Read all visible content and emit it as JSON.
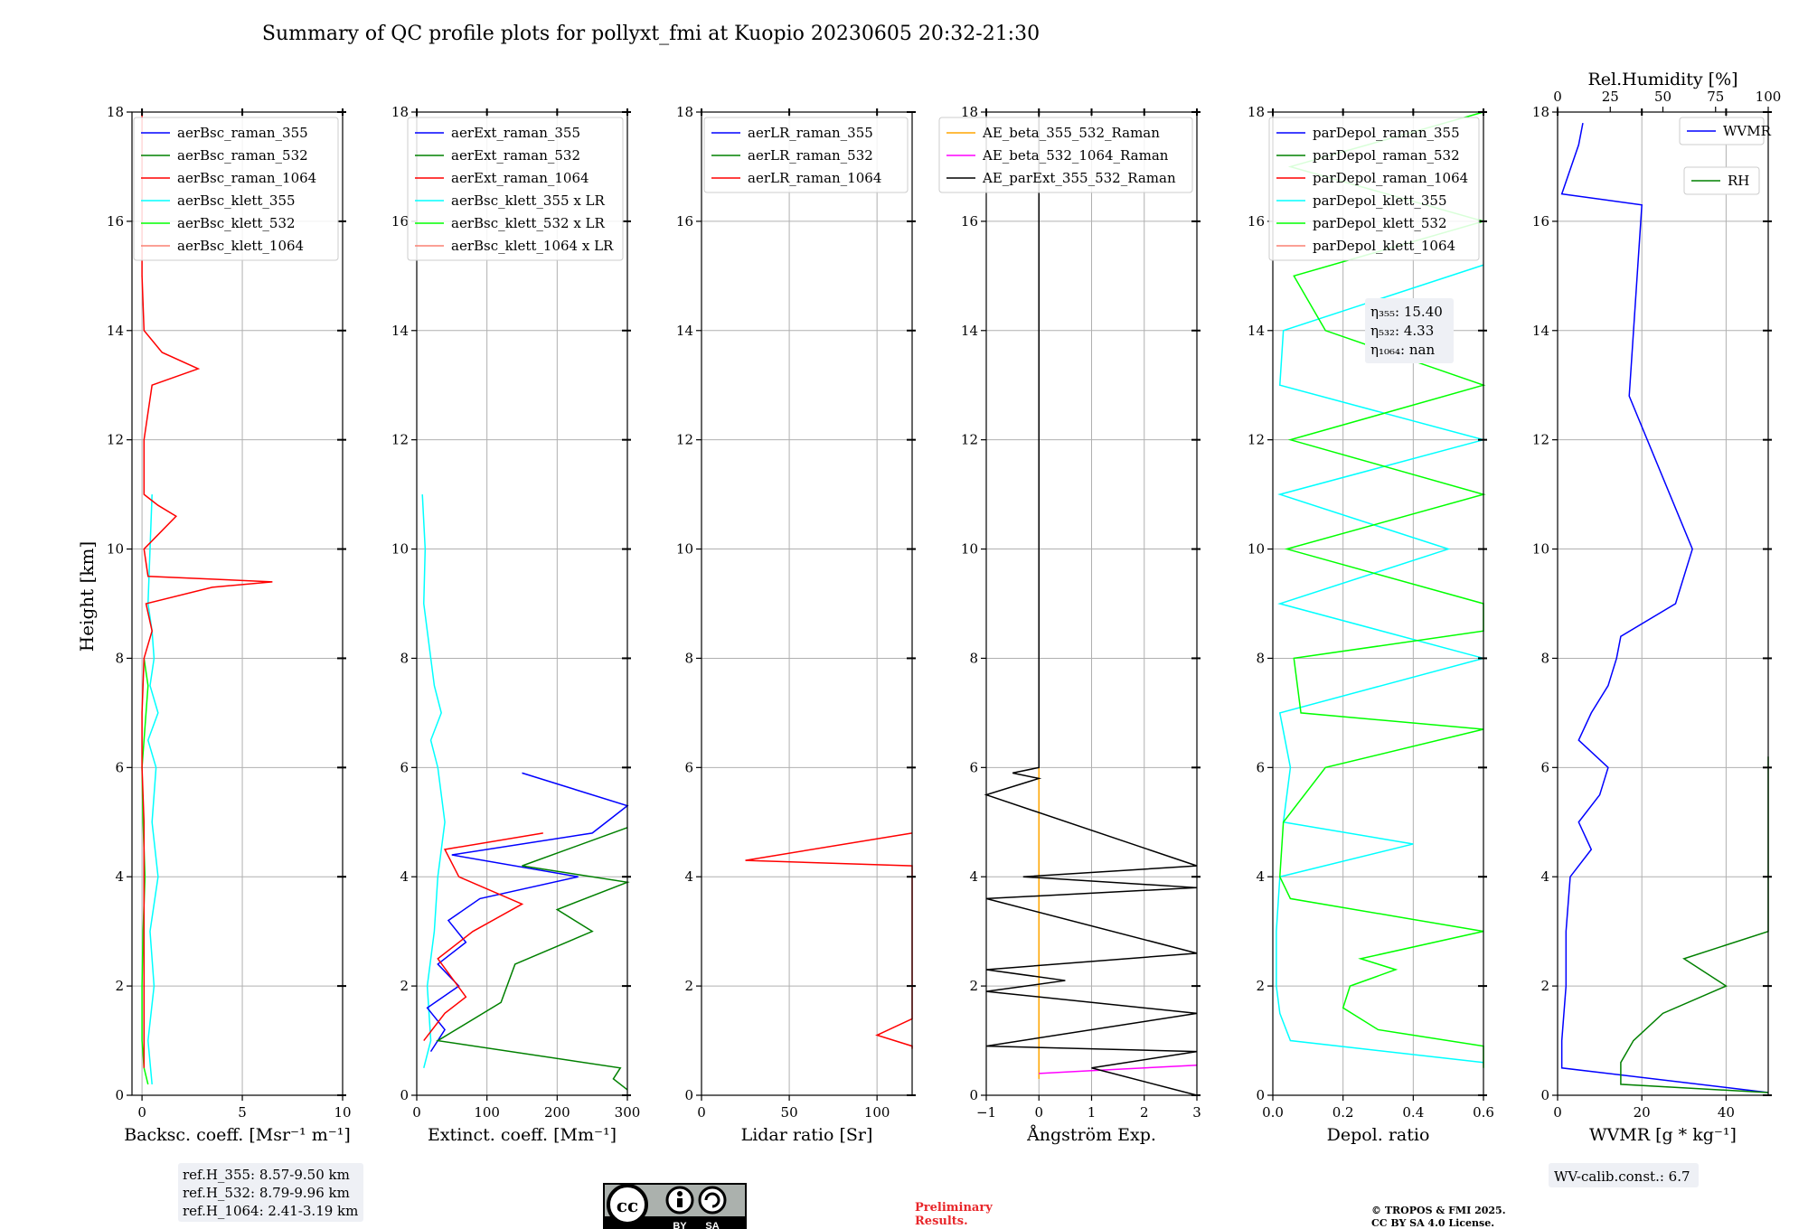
{
  "title": "Summary of QC profile plots for pollyxt_fmi at Kuopio 20230605 20:32-21:30",
  "ylabel": "Height [km]",
  "ref_box": [
    "ref.H_355: 8.57-9.50 km",
    "ref.H_532: 8.79-9.96 km",
    "ref.H_1064: 2.41-3.19 km"
  ],
  "wv_calib": "WV-calib.const.: 6.7",
  "preliminary": [
    "Preliminary",
    "Results."
  ],
  "copyright": [
    "© TROPOS & FMI 2025.",
    "CC BY SA 4.0 License."
  ],
  "license_badge": [
    "BY",
    "SA"
  ],
  "colors": {
    "blue": "#0000ff",
    "green": "#008000",
    "red": "#ff0000",
    "cyan": "#00ffff",
    "lime": "#00ff00",
    "salmon": "#fa8072",
    "orange": "#ffa500",
    "magenta": "#ff00ff",
    "black": "#000000"
  },
  "chart_data": [
    {
      "type": "line",
      "xlabel": "Backsc. coeff. [Msr⁻¹ m⁻¹]",
      "xlim": [
        -0.5,
        10
      ],
      "xticks": [
        0,
        5,
        10
      ],
      "ylim": [
        0,
        18
      ],
      "yticks": [
        0,
        2,
        4,
        6,
        8,
        10,
        12,
        14,
        16,
        18
      ],
      "legend": [
        "aerBsc_raman_355",
        "aerBsc_raman_532",
        "aerBsc_raman_1064",
        "aerBsc_klett_355",
        "aerBsc_klett_532",
        "aerBsc_klett_1064"
      ],
      "legend_colors": [
        "#0000ff",
        "#008000",
        "#ff0000",
        "#00ffff",
        "#00ff00",
        "#fa8072"
      ],
      "legend_position": "top-right",
      "series": [
        {
          "color": "#00ffff",
          "y": [
            0.2,
            1,
            2,
            3,
            4,
            5,
            6,
            6.5,
            7,
            7.5,
            8,
            8.5,
            9,
            10,
            11
          ],
          "x": [
            0.5,
            0.3,
            0.6,
            0.4,
            0.8,
            0.5,
            0.7,
            0.3,
            0.8,
            0.4,
            0.6,
            0.5,
            0.3,
            0.4,
            0.5
          ]
        },
        {
          "color": "#00ff00",
          "y": [
            0.2,
            0.5,
            1,
            2,
            3,
            4,
            5,
            6,
            7,
            7.5,
            8
          ],
          "x": [
            0.3,
            0.1,
            0.0,
            0.0,
            0.05,
            0.15,
            0.05,
            0.0,
            0.2,
            0.3,
            0.1
          ]
        },
        {
          "color": "#ff0000",
          "y": [
            0.5,
            1,
            2,
            3,
            4,
            5,
            6,
            7,
            8,
            8.5,
            9,
            9.3,
            9.4,
            9.5,
            10,
            10.6,
            10.8,
            11,
            12,
            13,
            13.3,
            13.6,
            14,
            15,
            16,
            17,
            18
          ],
          "x": [
            0.1,
            0.1,
            0.1,
            0.1,
            0.1,
            0.1,
            0.0,
            0.0,
            0.1,
            0.5,
            0.2,
            3.5,
            6.5,
            0.3,
            0.1,
            1.7,
            0.8,
            0.1,
            0.1,
            0.5,
            2.8,
            1.0,
            0.1,
            0.0,
            0.0,
            0.0,
            0.0
          ]
        }
      ]
    },
    {
      "type": "line",
      "xlabel": "Extinct. coeff. [Mm⁻¹]",
      "xlim": [
        0,
        300
      ],
      "xticks": [
        0,
        100,
        200,
        300
      ],
      "ylim": [
        0,
        18
      ],
      "legend": [
        "aerExt_raman_355",
        "aerExt_raman_532",
        "aerExt_raman_1064",
        "aerBsc_klett_355 x LR",
        "aerBsc_klett_532 x LR",
        "aerBsc_klett_1064 x LR"
      ],
      "legend_colors": [
        "#0000ff",
        "#008000",
        "#ff0000",
        "#00ffff",
        "#00ff00",
        "#fa8072"
      ],
      "legend_position": "top-right",
      "series": [
        {
          "color": "#00ffff",
          "y": [
            0.5,
            1,
            2,
            3,
            4,
            5,
            6,
            6.5,
            7,
            7.5,
            8,
            8.5,
            9,
            10,
            11
          ],
          "x": [
            10,
            20,
            15,
            25,
            30,
            40,
            30,
            20,
            35,
            25,
            20,
            15,
            10,
            12,
            8
          ]
        },
        {
          "color": "#0000ff",
          "y": [
            0.8,
            1.2,
            1.6,
            2,
            2.4,
            2.8,
            3.2,
            3.6,
            4,
            4.4,
            4.8,
            5.1,
            5.3,
            5.9
          ],
          "x": [
            20,
            40,
            15,
            60,
            30,
            70,
            45,
            90,
            230,
            50,
            250,
            280,
            300,
            150
          ]
        },
        {
          "color": "#008000",
          "y": [
            0.1,
            0.3,
            0.5,
            1,
            1.7,
            2.4,
            3,
            3.4,
            3.9,
            4.2,
            4.9
          ],
          "x": [
            300,
            280,
            290,
            30,
            120,
            140,
            250,
            200,
            300,
            150,
            300
          ]
        },
        {
          "color": "#ff0000",
          "y": [
            1,
            1.5,
            1.8,
            2.5,
            3,
            3.5,
            4,
            4.5,
            4.8
          ],
          "x": [
            10,
            40,
            70,
            30,
            80,
            150,
            60,
            40,
            180
          ]
        }
      ]
    },
    {
      "type": "line",
      "xlabel": "Lidar ratio [Sr]",
      "xlim": [
        0,
        120
      ],
      "xticks": [
        0,
        50,
        100
      ],
      "ylim": [
        0,
        18
      ],
      "legend": [
        "aerLR_raman_355",
        "aerLR_raman_532",
        "aerLR_raman_1064"
      ],
      "legend_colors": [
        "#0000ff",
        "#008000",
        "#ff0000"
      ],
      "legend_position": "top-right",
      "series": [
        {
          "color": "#ff0000",
          "y": [
            0.85,
            0.9,
            1.1,
            1.4,
            1.5,
            2.2,
            2.4,
            2.6,
            2.8,
            3.0,
            3.2,
            3.5,
            3.7,
            3.9,
            4.0,
            4.1,
            4.2,
            4.3,
            4.8
          ],
          "x": [
            120,
            120,
            100,
            120,
            120,
            120,
            120,
            120,
            120,
            120,
            120,
            120,
            120,
            120,
            120,
            120,
            120,
            25,
            120
          ]
        }
      ]
    },
    {
      "type": "line",
      "xlabel": "Ångström Exp.",
      "xlim": [
        -1,
        3
      ],
      "xticks": [
        -1,
        0,
        1,
        2,
        3
      ],
      "ylim": [
        0,
        18
      ],
      "legend": [
        "AE_beta_355_532_Raman",
        "AE_beta_532_1064_Raman",
        "AE_parExt_355_532_Raman"
      ],
      "legend_colors": [
        "#ffa500",
        "#ff00ff",
        "#000000"
      ],
      "legend_position": "top-right",
      "series": [
        {
          "color": "#ffa500",
          "y": [
            0.3,
            18
          ],
          "x": [
            0,
            0
          ]
        },
        {
          "color": "#ff00ff",
          "y": [
            0.4,
            0.45,
            0.5,
            0.55
          ],
          "x": [
            0,
            1,
            2,
            3
          ]
        },
        {
          "color": "#000000",
          "y": [
            0.0,
            0.5,
            0.8,
            0.9,
            1.5,
            1.9,
            2.1,
            2.3,
            2.6,
            3.6,
            3.8,
            4.0,
            4.2,
            5.5,
            5.8,
            5.9,
            6.0,
            18
          ],
          "x": [
            3,
            1,
            3,
            -1,
            3,
            -1,
            0.5,
            -1,
            3,
            -1,
            3,
            -0.3,
            3,
            -1,
            0,
            -0.5,
            0,
            0
          ]
        }
      ]
    },
    {
      "type": "line",
      "xlabel": "Depol. ratio",
      "xlim": [
        0,
        0.6
      ],
      "xticks": [
        0.0,
        0.2,
        0.4,
        0.6
      ],
      "ylim": [
        0,
        18
      ],
      "legend": [
        "parDepol_raman_355",
        "parDepol_raman_532",
        "parDepol_raman_1064",
        "parDepol_klett_355",
        "parDepol_klett_532",
        "parDepol_klett_1064"
      ],
      "legend_colors": [
        "#0000ff",
        "#008000",
        "#ff0000",
        "#00ffff",
        "#00ff00",
        "#fa8072"
      ],
      "legend_position": "top-right",
      "annotation": [
        "η₃₅₅: 15.40",
        "η₅₃₂: 4.33",
        "η₁₀₆₄: nan"
      ],
      "series": [
        {
          "color": "#00ffff",
          "y": [
            0.6,
            1,
            1.5,
            2,
            3,
            4,
            4.6,
            5,
            6,
            7,
            8,
            9,
            10,
            11,
            12,
            13,
            14,
            15.2
          ],
          "x": [
            0.6,
            0.05,
            0.02,
            0.01,
            0.01,
            0.02,
            0.4,
            0.03,
            0.05,
            0.02,
            0.6,
            0.02,
            0.5,
            0.02,
            0.6,
            0.02,
            0.03,
            0.6
          ]
        },
        {
          "color": "#00ff00",
          "y": [
            0.5,
            0.9,
            1.2,
            1.6,
            2,
            2.3,
            2.5,
            3,
            3.6,
            4,
            5,
            6,
            6.7,
            7,
            8,
            8.5,
            9,
            10,
            11,
            12,
            13,
            14,
            15,
            16,
            17,
            18
          ],
          "x": [
            0.6,
            0.6,
            0.3,
            0.2,
            0.22,
            0.35,
            0.25,
            0.6,
            0.05,
            0.02,
            0.03,
            0.15,
            0.6,
            0.08,
            0.06,
            0.6,
            0.6,
            0.04,
            0.6,
            0.05,
            0.6,
            0.15,
            0.06,
            0.6,
            0.05,
            0.6
          ]
        }
      ]
    },
    {
      "type": "line",
      "xlabel": "WVMR [g * kg⁻¹]",
      "x2label": "Rel.Humidity [%]",
      "xlim": [
        0,
        50
      ],
      "xticks": [
        0,
        20,
        40
      ],
      "x2lim": [
        0,
        100
      ],
      "x2ticks": [
        0,
        25,
        50,
        75,
        100
      ],
      "ylim": [
        0,
        18
      ],
      "legend": [
        "WVMR",
        "RH"
      ],
      "legend_colors": [
        "#0000ff",
        "#008000"
      ],
      "legend_position": "top-right",
      "series": [
        {
          "name": "WVMR",
          "color": "#0000ff",
          "y": [
            0.05,
            0.5,
            1,
            2,
            3,
            4,
            4.5,
            5,
            5.5,
            6,
            6.5,
            7,
            7.5,
            8,
            8.4,
            9,
            10,
            12.8,
            16.3,
            16.5,
            17.4,
            17.8
          ],
          "x": [
            50,
            1,
            1,
            2,
            2,
            3,
            8,
            5,
            10,
            12,
            5,
            8,
            12,
            14,
            15,
            28,
            32,
            17,
            20,
            1,
            5,
            6
          ]
        },
        {
          "name": "RH",
          "color": "#008000",
          "y": [
            0.05,
            0.2,
            0.6,
            1,
            1.5,
            2,
            2.5,
            3,
            3.5,
            4,
            4.5,
            4.9,
            5.2,
            5.7,
            6.2
          ],
          "x": [
            100,
            15,
            15,
            18,
            25,
            40,
            30,
            50,
            100,
            80,
            100,
            100,
            70,
            100,
            100
          ]
        }
      ]
    }
  ]
}
